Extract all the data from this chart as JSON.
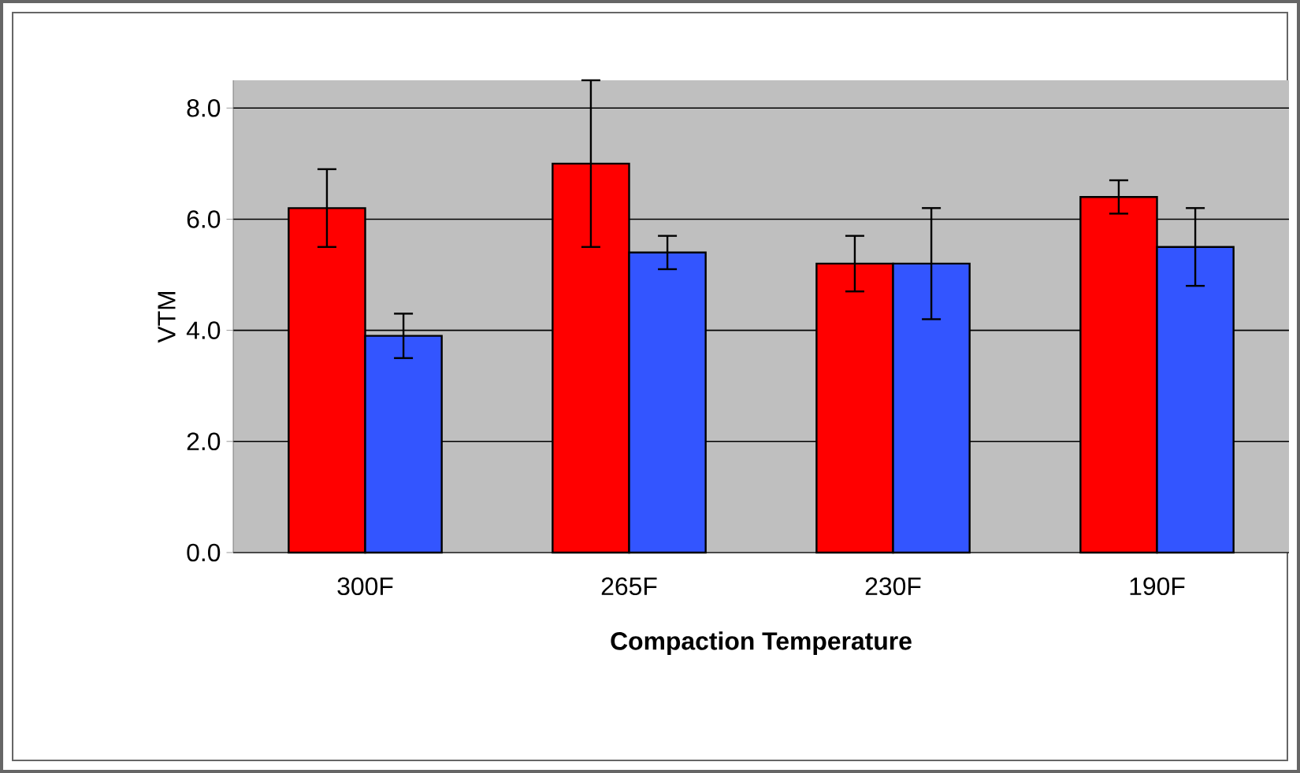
{
  "chart_data": {
    "type": "bar",
    "xlabel": "Compaction Temperature",
    "ylabel": "VTM",
    "categories": [
      "300F",
      "265F",
      "230F",
      "190F"
    ],
    "series": [
      {
        "color": "#ff0000",
        "values": [
          6.2,
          7.0,
          5.2,
          6.4
        ],
        "errors": [
          0.7,
          1.5,
          0.5,
          0.3
        ]
      },
      {
        "color": "#3355ff",
        "values": [
          3.9,
          5.4,
          5.2,
          5.5
        ],
        "errors": [
          0.4,
          0.3,
          1.0,
          0.7
        ]
      }
    ],
    "ylim": [
      0,
      8.5
    ],
    "yticks": [
      {
        "value": 0,
        "label": "0.0"
      },
      {
        "value": 2,
        "label": "2.0"
      },
      {
        "value": 4,
        "label": "4.0"
      },
      {
        "value": 6,
        "label": "6.0"
      },
      {
        "value": 8,
        "label": "8.0"
      }
    ],
    "grid": "y"
  }
}
